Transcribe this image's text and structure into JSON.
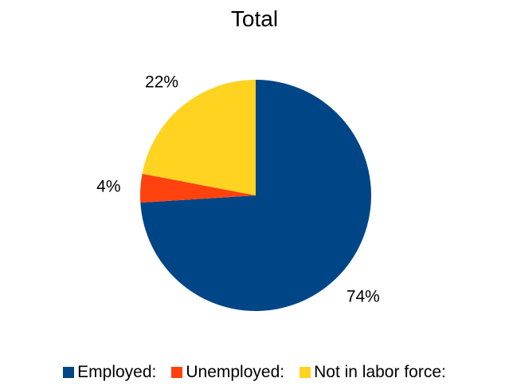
{
  "chart_data": {
    "type": "pie",
    "title": "Total",
    "categories": [
      "Employed:",
      "Unemployed:",
      "Not in labor force:"
    ],
    "values": [
      74,
      4,
      22
    ],
    "labels": [
      "74%",
      "4%",
      "22%"
    ],
    "colors": [
      "#004586",
      "#ff420e",
      "#ffd320"
    ],
    "start_angle_deg": 0,
    "direction": "clockwise",
    "legend_position": "bottom"
  }
}
